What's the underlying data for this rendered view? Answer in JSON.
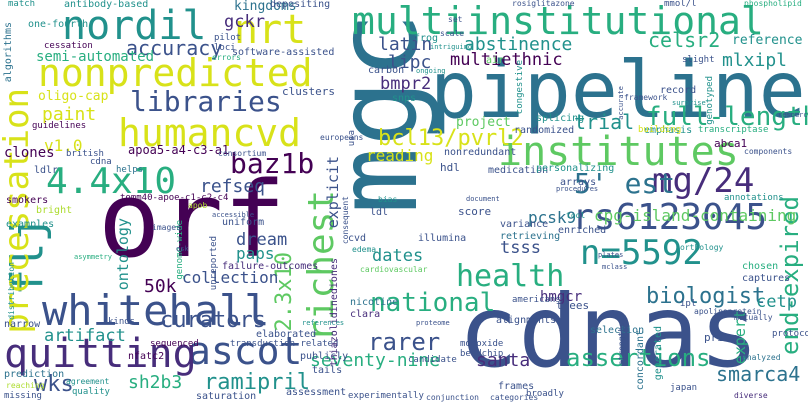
{
  "words": {
    "mgc": "mgc",
    "pipeline": "pipeline",
    "orf": "orf",
    "cdnas": "cdnas",
    "multiinstitutional": "multiinstitutional",
    "nordil": "nordil",
    "nrt": "nrt",
    "nonpredicted": "nonpredicted",
    "humancvd": "humancvd",
    "libraries": "libraries",
    "accuracy": "accuracy",
    "whitehall": "whitehall",
    "ascot": "ascot",
    "quitting": "quitting",
    "flj": "flj",
    "precessation": "precessation",
    "v4x10": "4.4x10",
    "baz1b": "baz1b",
    "institutes": "institutes",
    "mg24": "mg/24",
    "est5": "5' est",
    "rs6123045": "rs6123045",
    "n5592": "n=5592",
    "health": "health",
    "richest": "richest",
    "x2310": "2.3x10",
    "curators": "curators",
    "ramipril": "ramipril",
    "sh2b3": "sh2b3",
    "wks": "wks",
    "fullLength": "full-length",
    "trial": "trial",
    "bcl13": "bcl13/pvrl2",
    "endExpired": "end-expired",
    "cpgIsland": "cpg-island-containing",
    "pcsk9": "pcsk9",
    "biologist": "biologist",
    "national": "national",
    "rarer": "rarer",
    "seventyNine": "seventy-nine",
    "assertions": "assertions",
    "smarca4": "smarca4",
    "santa": "santa",
    "celsr2": "celsr2",
    "abstinence": "abstinence",
    "multiethnic": "multiethnic",
    "latin": "latin",
    "lipc": "lipc",
    "bmpr2": "bmpr2",
    "mlxipl": "mlxipl",
    "reference": "reference",
    "kingdoms": "kingdoms",
    "gckr": "gckr",
    "semiAutomated": "semi-automated",
    "oligoCap": "oligo-cap",
    "paint": "paint",
    "v10": "v1.0",
    "refseq": "refseq",
    "k50": "50k",
    "collection": "collection",
    "dream": "dream",
    "paps": "paps",
    "ontology": "ontology",
    "artifact": "artifact",
    "explicit": "explicit",
    "dates": "dates",
    "tsss": "tsss",
    "hmgcr": "hmgcr",
    "cetp": "cetp",
    "expert": "expert",
    "reading": "reading",
    "project": "project",
    "fourth": "one-fourth",
    "antibody": "antibody-based",
    "cessation": "cessation",
    "apoa5": "apoa5-a4-c3-a1",
    "clones": "clones",
    "ldlr": "ldlr",
    "apoe": "tomm40-apoe-c1-c2-c4",
    "software": "software-assisted",
    "depositing": "depositing",
    "loci": "loci",
    "pilot": "pilot",
    "algorithms": "algorithms",
    "match": "match",
    "smokers": "smokers",
    "examples": "examples",
    "bright": "bright",
    "guidelines": "guidelines",
    "british": "british",
    "cdna": "cdna",
    "helps": "helps",
    "narrow": "narrow",
    "prediction": "prediction",
    "reaching": "reaching",
    "agreement": "agreement",
    "missing": "missing",
    "quality": "quality",
    "nfatc2": "nfatc2",
    "sequenced": "sequenced",
    "elaborated": "elaborated",
    "transduction": "transduction-related",
    "kinds": "kinds",
    "failure": "failure-outcomes",
    "uniform": "uniform",
    "unreported": "unreported",
    "publicly": "publicly",
    "tails": "tails",
    "saturation": "saturation",
    "assessment": "assessment",
    "experimentally": "experimentally",
    "conjunction": "conjunction",
    "categories": "categories",
    "clusters": "clusters",
    "snps": "snps",
    "carbon": "carbon",
    "frog": "frog",
    "air": "air",
    "usa": "usa",
    "hdl": "hdl",
    "ldl": "ldl",
    "bias": "bias",
    "score": "score",
    "document": "document",
    "illumina": "illumina",
    "cvd": "cvd",
    "nicotine": "nicotine",
    "clara": "clara",
    "thiazolidinediones": "thiazolidinediones",
    "candidate": "candidate",
    "monoxide": "monoxide",
    "beadchip": "beadchip",
    "frames": "frames",
    "broadly": "broadly",
    "selection": "selection",
    "concordant": "concordant",
    "generated": "generated",
    "japan": "japan",
    "diverse": "diverse",
    "analyzed": "analyzed",
    "prior": "prior",
    "protocols": "protocols",
    "mutually": "mutually",
    "apolipoprotein": "apolipoprotein",
    "captures": "captures",
    "chosen": "chosen",
    "alignments": "alignments",
    "trees": "trees",
    "americans": "americans",
    "annotations": "annotations",
    "retrieving": "retrieving",
    "variance": "variance",
    "enriched": "enriched",
    "arrays": "arrays",
    "medication": "medication",
    "personalizing": "personalizing",
    "nonredundant": "nonredundant",
    "randomized": "randomized",
    "emphasis": "emphasis",
    "building": "building",
    "transcriptase": "transcriptase",
    "abca1": "abca1",
    "components": "components",
    "record": "record",
    "framework": "framework",
    "genotyped": "genotyped",
    "slight": "slight",
    "congestive": "congestive",
    "splicing": "splicing",
    "rosiglitazone": "rosiglitazone",
    "set": "set",
    "mmol": "mmol/l",
    "phospho": "phospholipid",
    "resource": "resource",
    "scale": "scale",
    "intriguing": "intriguing",
    "europeans": "europeans",
    "errors": "errors",
    "consortium": "consortium",
    "strengths": "strengths",
    "ipl": "ipl",
    "cardio": "cardiovascular",
    "edema": "edema",
    "genomeWide": "genome-wide",
    "apob": "apob",
    "images": "images",
    "proteome": "proteome",
    "consequent": "consequent",
    "distribution": "distribution",
    "ongoing": "ongoing",
    "tool": "tool",
    "accurate": "accurate",
    "surprise": "surprise",
    "orthology": "orthology",
    "procedures": "procedures",
    "references": "references",
    "accessible": "accessible",
    "asymmetry": "asymmetry",
    "osk": "osk",
    "plates": "plates",
    "mclass": "mclass"
  }
}
